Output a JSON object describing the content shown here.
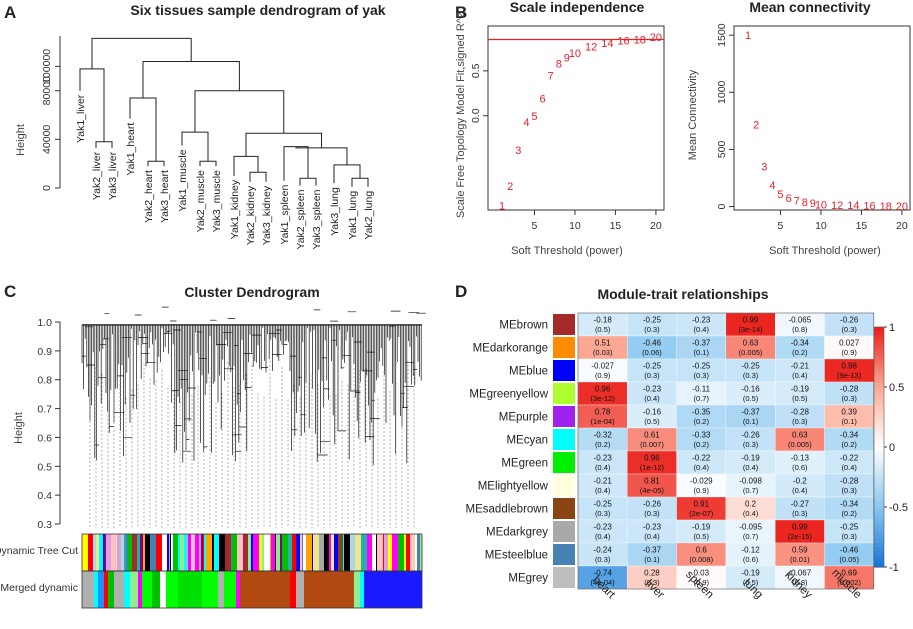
{
  "panels": {
    "A": {
      "letter": "A",
      "title": "Six tissues sample dendrogram of yak",
      "ylabel": "Height",
      "yticks": [
        "0",
        "40000",
        "80000",
        "100000"
      ],
      "leaves": [
        "Yak1_liver",
        "Yak2_liver",
        "Yak3_liver",
        "Yak1_heart",
        "Yak2_heart",
        "Yak3_heart",
        "Yak1_muscle",
        "Yak2_muscle",
        "Yak3_muscle",
        "Yak1_kidney",
        "Yak2_kidney",
        "Yak3_kidney",
        "Yak1_spleen",
        "Yak2_spleen",
        "Yak3_spleen",
        "Yak3_lung",
        "Yak1_lung",
        "Yak2_lung"
      ]
    },
    "B": {
      "letter": "B",
      "left_title": "Scale independence",
      "right_title": "Mean connectivity",
      "left_ylabel": "Scale Free Topology Model Fit,signed R^2",
      "right_ylabel": "Mean Connectivity",
      "xlabel": "Soft Threshold (power)"
    },
    "C": {
      "letter": "C",
      "title": "Cluster Dendrogram",
      "ylabel": "Height",
      "yticks": [
        "0.3",
        "0.4",
        "0.5",
        "0.6",
        "0.7",
        "0.8",
        "0.9",
        "1.0"
      ],
      "bar1_label": "Dynamic Tree Cut",
      "bar2_label": "Merged dynamic"
    },
    "D": {
      "letter": "D",
      "title": "Module-trait relationships",
      "legend_ticks": [
        "1",
        "0.5",
        "0",
        "-0.5",
        "-1"
      ]
    }
  },
  "chart_data": [
    {
      "type": "dendrogram",
      "title": "Six tissues sample dendrogram of yak",
      "ylabel": "Height",
      "ylim": [
        0,
        125000
      ],
      "yticks": [
        0,
        40000,
        80000,
        100000
      ],
      "leaves": [
        "Yak1_liver",
        "Yak2_liver",
        "Yak3_liver",
        "Yak1_heart",
        "Yak2_heart",
        "Yak3_heart",
        "Yak1_muscle",
        "Yak2_muscle",
        "Yak3_muscle",
        "Yak1_kidney",
        "Yak2_kidney",
        "Yak3_kidney",
        "Yak1_spleen",
        "Yak2_spleen",
        "Yak3_spleen",
        "Yak3_lung",
        "Yak1_lung",
        "Yak2_lung"
      ],
      "leaf_heights": [
        80000,
        33000,
        33000,
        57000,
        18000,
        18000,
        35000,
        18000,
        18000,
        10000,
        5000,
        5000,
        6000,
        2000,
        2000,
        4000,
        1000,
        1000
      ]
    },
    {
      "type": "scatter",
      "title": "Scale independence",
      "xlabel": "Soft Threshold (power)",
      "ylabel": "Scale Free Topology Model Fit,signed R^2",
      "x": [
        1,
        2,
        3,
        4,
        5,
        6,
        7,
        8,
        9,
        10,
        12,
        14,
        16,
        18,
        20
      ],
      "y": [
        -1.0,
        -0.78,
        -0.38,
        -0.07,
        0.0,
        0.19,
        0.45,
        0.58,
        0.65,
        0.7,
        0.77,
        0.81,
        0.84,
        0.85,
        0.88
      ],
      "xlim": [
        0,
        21
      ],
      "ylim": [
        -1.05,
        1.0
      ],
      "xticks": [
        5,
        10,
        15,
        20
      ],
      "yticks": [
        0.0,
        0.5
      ],
      "hline": 0.85
    },
    {
      "type": "scatter",
      "title": "Mean connectivity",
      "xlabel": "Soft Threshold (power)",
      "ylabel": "Mean Connectivity",
      "x": [
        1,
        2,
        3,
        4,
        5,
        6,
        7,
        8,
        9,
        10,
        12,
        14,
        16,
        18,
        20
      ],
      "y": [
        1500,
        720,
        350,
        190,
        110,
        75,
        55,
        40,
        30,
        20,
        14,
        12,
        8,
        6,
        5
      ],
      "xlim": [
        0,
        21
      ],
      "ylim": [
        -30,
        1580
      ],
      "xticks": [
        5,
        10,
        15,
        20
      ],
      "yticks": [
        0,
        500,
        1000,
        1500
      ]
    },
    {
      "type": "dendrogram",
      "title": "Cluster Dendrogram",
      "ylabel": "Height",
      "ylim": [
        0.3,
        1.0
      ],
      "yticks": [
        0.3,
        0.4,
        0.5,
        0.6,
        0.7,
        0.8,
        0.9,
        1.0
      ],
      "color_bars": [
        "Dynamic Tree Cut",
        "Merged dynamic"
      ]
    },
    {
      "type": "heatmap",
      "title": "Module-trait relationships",
      "rows": [
        "MEbrown",
        "MEdarkorange",
        "MEblue",
        "MEgreenyellow",
        "MEpurple",
        "MEcyan",
        "MEgreen",
        "MElightyellow",
        "MEsaddlebrown",
        "MEdarkgrey",
        "MEsteelblue",
        "MEgrey"
      ],
      "row_colors": [
        "#a52a2a",
        "#ff8c00",
        "#0000ff",
        "#adff2f",
        "#a020f0",
        "#00ffff",
        "#00ee00",
        "#ffffe0",
        "#8b4513",
        "#a9a9a9",
        "#4682b4",
        "#bebebe"
      ],
      "columns": [
        "heart",
        "liver",
        "spleen",
        "lung",
        "kidney",
        "muscle"
      ],
      "values": [
        [
          -0.18,
          -0.25,
          -0.23,
          0.99,
          -0.065,
          -0.26
        ],
        [
          0.51,
          -0.46,
          -0.37,
          0.63,
          -0.34,
          0.027
        ],
        [
          -0.027,
          -0.25,
          -0.25,
          -0.25,
          -0.21,
          0.98
        ],
        [
          0.96,
          -0.23,
          -0.11,
          -0.16,
          -0.19,
          -0.28
        ],
        [
          0.78,
          -0.16,
          -0.35,
          -0.37,
          -0.28,
          0.39
        ],
        [
          -0.32,
          0.61,
          -0.33,
          -0.26,
          0.63,
          -0.34
        ],
        [
          -0.23,
          0.96,
          -0.22,
          -0.19,
          -0.13,
          -0.22
        ],
        [
          -0.21,
          0.81,
          -0.029,
          -0.098,
          -0.2,
          -0.28
        ],
        [
          -0.25,
          -0.26,
          0.91,
          0.2,
          -0.27,
          -0.34
        ],
        [
          -0.23,
          -0.23,
          -0.19,
          -0.095,
          0.99,
          -0.25
        ],
        [
          -0.24,
          -0.37,
          0.6,
          -0.12,
          0.59,
          -0.46
        ],
        [
          -0.74,
          0.28,
          0.03,
          -0.19,
          -0.067,
          0.69
        ]
      ],
      "pvalues": [
        [
          "(0.5)",
          "(0.3)",
          "(0.4)",
          "(3e-14)",
          "(0.8)",
          "(0.3)"
        ],
        [
          "(0.03)",
          "(0.06)",
          "(0.1)",
          "(0.005)",
          "(0.2)",
          "(0.9)"
        ],
        [
          "(0.9)",
          "(0.3)",
          "(0.3)",
          "(0.3)",
          "(0.4)",
          "(9e-13)"
        ],
        [
          "(3e-12)",
          "(0.4)",
          "(0.7)",
          "(0.5)",
          "(0.5)",
          "(0.3)"
        ],
        [
          "(1e-04)",
          "(0.5)",
          "(0.2)",
          "(0.1)",
          "(0.3)",
          "(0.1)"
        ],
        [
          "(0.2)",
          "(0.007)",
          "(0.2)",
          "(0.3)",
          "(0.005)",
          "(0.2)"
        ],
        [
          "(0.4)",
          "(1e-12)",
          "(0.4)",
          "(0.4)",
          "(0.6)",
          "(0.4)"
        ],
        [
          "(0.4)",
          "(4e-05)",
          "(0.9)",
          "(0.7)",
          "(0.4)",
          "(0.3)"
        ],
        [
          "(0.3)",
          "(0.3)",
          "(2e-07)",
          "(0.4)",
          "(0.3)",
          "(0.2)"
        ],
        [
          "(0.4)",
          "(0.4)",
          "(0.5)",
          "(0.7)",
          "(2e-15)",
          "(0.3)"
        ],
        [
          "(0.3)",
          "(0.1)",
          "(0.008)",
          "(0.6)",
          "(0.01)",
          "(0.05)"
        ],
        [
          "(4e-04)",
          "(0.3)",
          "(0.9)",
          "(0.5)",
          "(0.8)",
          "(0.002)"
        ]
      ],
      "colorbar_range": [
        -1,
        1
      ],
      "colorbar_ticks": [
        1,
        0.5,
        0,
        -0.5,
        -1
      ]
    }
  ]
}
